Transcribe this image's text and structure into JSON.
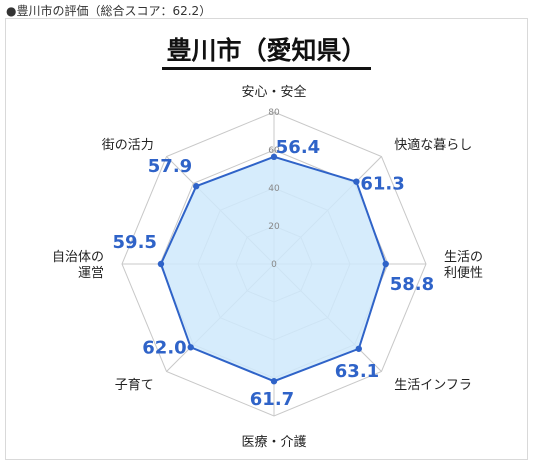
{
  "caption": "●豊川市の評価（総合スコア：62.2）",
  "chart_data": {
    "type": "radar",
    "title": "豊川市（愛知県）",
    "axes": [
      {
        "label": [
          "安心・安全"
        ],
        "value": 56.4
      },
      {
        "label": [
          "快適な暮らし"
        ],
        "value": 61.3
      },
      {
        "label": [
          "生活の",
          "利便性"
        ],
        "value": 58.8
      },
      {
        "label": [
          "生活インフラ"
        ],
        "value": 63.1
      },
      {
        "label": [
          "医療・介護"
        ],
        "value": 61.7
      },
      {
        "label": [
          "子育て"
        ],
        "value": 62.0
      },
      {
        "label": [
          "自治体の",
          "運営"
        ],
        "value": 59.5
      },
      {
        "label": [
          "街の活力"
        ],
        "value": 57.9
      }
    ],
    "rlim": [
      0,
      80
    ],
    "ticks": [
      0,
      20,
      40,
      60,
      80
    ],
    "colors": {
      "line": "#2f63c8",
      "fill": "#cfe9fb",
      "grid": "#c8c8c8",
      "value_text": "#2f63c8"
    }
  }
}
